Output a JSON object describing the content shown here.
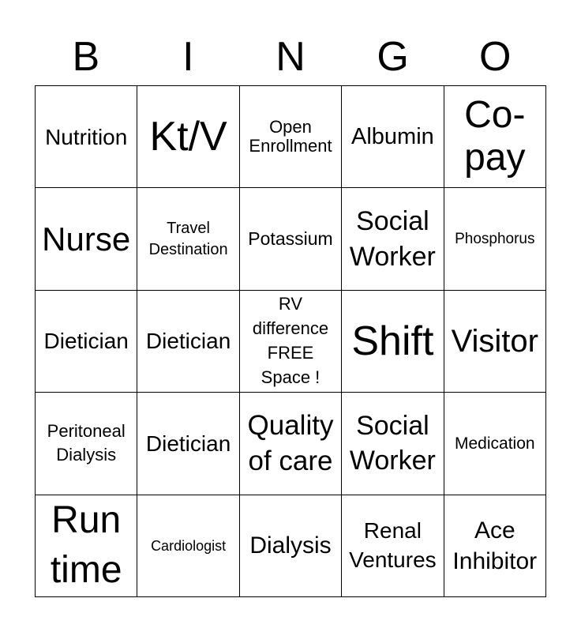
{
  "header": [
    "B",
    "I",
    "N",
    "G",
    "O"
  ],
  "cells": [
    "Nutrition",
    "Kt/V",
    "Open Enrollment",
    "Albumin",
    "Co-pay",
    "Nurse",
    "Travel Destination",
    "Potassium",
    "Social Worker",
    "Phosphorus",
    "Dietician",
    "Dietician",
    "RV difference FREE Space !",
    "Shift",
    "Visitor",
    "Peritoneal Dialysis",
    "Dietician",
    "Quality of care",
    "Social Worker",
    "Medication",
    "Run time",
    "Cardiologist",
    "Dialysis",
    "Renal Ventures",
    "Ace Inhibitor"
  ]
}
